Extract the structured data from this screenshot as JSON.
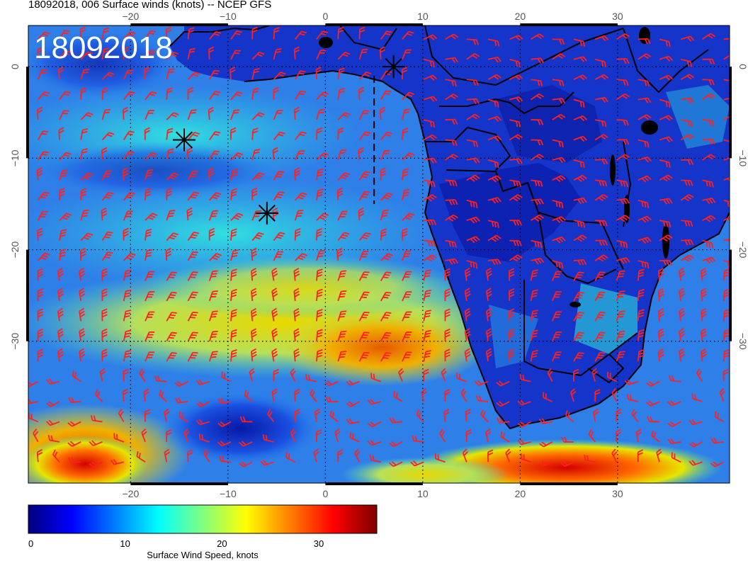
{
  "header": {
    "title": "18092018, 006 Surface winds (knots) -- NCEP GFS",
    "date_stamp": "18092018"
  },
  "map": {
    "lon_ticks": [
      "−20",
      "−10",
      "0",
      "10",
      "20",
      "30"
    ],
    "lat_ticks": [
      "0",
      "−10",
      "−20",
      "−30"
    ],
    "lon_values": [
      -20,
      -10,
      0,
      10,
      20,
      30
    ],
    "lat_values": [
      0,
      -10,
      -20,
      -30
    ],
    "extent": {
      "lon": [
        -30.5,
        41.5
      ],
      "lat": [
        4.5,
        -45.5
      ]
    },
    "barb_color": "#ff2020",
    "markers": [
      {
        "name": "marker-1",
        "lon": 7,
        "lat": 0
      },
      {
        "name": "marker-2",
        "lon": -14.5,
        "lat": -8
      },
      {
        "name": "marker-3",
        "lon": -6,
        "lat": -16
      }
    ],
    "dashed_line": {
      "lon": 5,
      "lat": [
        -1,
        -15
      ]
    }
  },
  "colorbar": {
    "label": "Surface Wind Speed, knots",
    "ticks": [
      "0",
      "10",
      "20",
      "30"
    ],
    "tick_values": [
      0,
      10,
      20,
      30
    ],
    "max": 36,
    "colors": [
      "#00007f",
      "#0000ff",
      "#007fff",
      "#00ffff",
      "#7fff7f",
      "#ffff00",
      "#ff7f00",
      "#ff0000",
      "#7f0000"
    ]
  }
}
